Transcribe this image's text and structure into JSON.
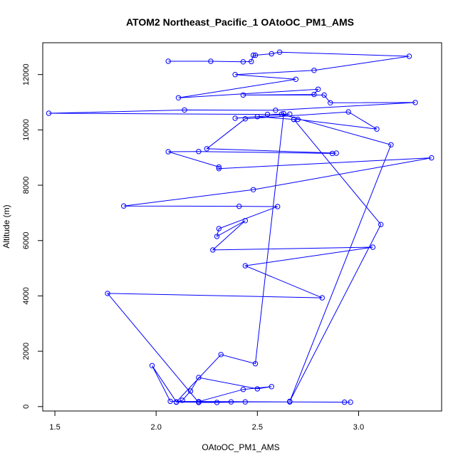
{
  "chart_data": {
    "type": "line",
    "title": "ATOM2 Northeast_Pacific_1 OAtoOC_PM1_AMS",
    "xlabel": "OAtoOC_PM1_AMS",
    "ylabel": "Altitude (m)",
    "xlim": [
      1.44,
      3.41
    ],
    "ylim": [
      -160,
      13150
    ],
    "xticks": [
      1.5,
      2.0,
      2.5,
      3.0
    ],
    "yticks": [
      0,
      2000,
      4000,
      6000,
      8000,
      10000,
      12000
    ],
    "x_tick_labels": [
      "1.5",
      "2.0",
      "2.5",
      "3.0"
    ],
    "y_tick_labels": [
      "0",
      "2000",
      "4000",
      "6000",
      "8000",
      "10000",
      "12000"
    ],
    "grid": false,
    "color": "#0000ff",
    "series": [
      {
        "marker": "open-circle",
        "points": [
          [
            2.06,
            12480
          ],
          [
            2.27,
            12480
          ],
          [
            2.43,
            12460
          ],
          [
            2.47,
            12470
          ],
          [
            2.48,
            12700
          ],
          [
            2.49,
            12700
          ],
          [
            2.57,
            12750
          ],
          [
            2.61,
            12810
          ],
          [
            3.25,
            12660
          ],
          [
            2.78,
            12150
          ],
          [
            2.39,
            12000
          ],
          [
            2.69,
            11830
          ],
          [
            2.11,
            11160
          ],
          [
            2.8,
            11470
          ],
          [
            2.78,
            11280
          ],
          [
            2.43,
            11260
          ],
          [
            2.83,
            11260
          ],
          [
            2.86,
            10980
          ],
          [
            3.28,
            10990
          ],
          [
            2.59,
            10710
          ],
          [
            2.14,
            10720
          ],
          [
            1.47,
            10600
          ],
          [
            2.55,
            10560
          ],
          [
            2.66,
            10570
          ],
          [
            2.39,
            10420
          ],
          [
            2.5,
            10480
          ],
          [
            2.68,
            10380
          ],
          [
            2.7,
            10380
          ],
          [
            3.09,
            10030
          ],
          [
            2.95,
            10650
          ],
          [
            2.44,
            10400
          ],
          [
            2.25,
            9320
          ],
          [
            2.89,
            9160
          ],
          [
            2.87,
            9150
          ],
          [
            2.21,
            9220
          ],
          [
            2.06,
            9210
          ],
          [
            2.31,
            8660
          ],
          [
            2.31,
            8600
          ],
          [
            3.36,
            8990
          ],
          [
            2.48,
            7840
          ],
          [
            1.84,
            7250
          ],
          [
            2.41,
            7240
          ],
          [
            2.6,
            7230
          ],
          [
            2.31,
            6430
          ],
          [
            2.3,
            6150
          ],
          [
            2.44,
            6720
          ],
          [
            2.28,
            5660
          ],
          [
            3.07,
            5760
          ],
          [
            2.44,
            5090
          ],
          [
            2.82,
            3930
          ],
          [
            1.76,
            4090
          ],
          [
            2.21,
            150
          ],
          [
            2.3,
            150
          ],
          [
            2.44,
            170
          ],
          [
            2.1,
            160
          ],
          [
            2.13,
            230
          ],
          [
            2.17,
            560
          ],
          [
            2.21,
            1050
          ],
          [
            2.5,
            640
          ],
          [
            2.57,
            720
          ],
          [
            2.43,
            620
          ],
          [
            2.21,
            180
          ],
          [
            2.37,
            170
          ],
          [
            2.66,
            170
          ],
          [
            2.93,
            160
          ],
          [
            2.96,
            160
          ],
          [
            2.07,
            190
          ],
          [
            1.98,
            1480
          ],
          [
            2.1,
            170
          ],
          [
            2.32,
            1880
          ],
          [
            2.49,
            1550
          ],
          [
            2.63,
            10590
          ],
          [
            2.62,
            10570
          ],
          [
            3.16,
            9460
          ],
          [
            2.66,
            190
          ],
          [
            3.11,
            6580
          ],
          [
            2.68,
            10380
          ]
        ]
      }
    ]
  }
}
